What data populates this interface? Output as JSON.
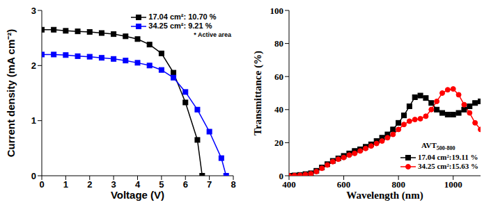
{
  "chart_data": [
    {
      "type": "line",
      "x_label": "Voltage (V)",
      "y_label": "Current density (mA cm⁻²)",
      "annotation": "* Active area",
      "xlim": [
        0,
        8
      ],
      "xticks": [
        0,
        1,
        2,
        3,
        4,
        5,
        6,
        7,
        8
      ],
      "ylim": [
        0,
        3
      ],
      "yticks": [
        0,
        1,
        2,
        3
      ],
      "grid": false,
      "legend": "upper right",
      "series": [
        {
          "name": "17.04 cm²: 10.70 %",
          "color": "#000000",
          "marker": "square",
          "line_style": "solid",
          "x": [
            0,
            0.5,
            1,
            1.5,
            2,
            2.5,
            3,
            3.5,
            4,
            4.5,
            5,
            5.5,
            6,
            6.5,
            6.7
          ],
          "values": [
            2.65,
            2.65,
            2.63,
            2.62,
            2.61,
            2.59,
            2.57,
            2.53,
            2.48,
            2.38,
            2.22,
            1.87,
            1.33,
            0.65,
            0
          ]
        },
        {
          "name": "34.25 cm²: 9.21 %",
          "color": "#0000ff",
          "marker": "square",
          "line_style": "solid",
          "x": [
            0,
            0.5,
            1,
            1.5,
            2,
            2.5,
            3,
            3.5,
            4,
            4.5,
            5,
            5.5,
            6,
            6.5,
            7,
            7.5,
            7.7
          ],
          "values": [
            2.2,
            2.2,
            2.19,
            2.17,
            2.16,
            2.14,
            2.12,
            2.09,
            2.05,
            2.0,
            1.92,
            1.78,
            1.52,
            1.2,
            0.8,
            0.32,
            0
          ]
        }
      ]
    },
    {
      "type": "line",
      "x_label": "Wavelength (nm)",
      "y_label": "Transmittance (%)",
      "legend_title": "AVT",
      "legend_title_sub": "500-800",
      "xlim": [
        400,
        1100
      ],
      "xticks": [
        400,
        600,
        800,
        1000
      ],
      "ylim": [
        0,
        100
      ],
      "yticks": [
        0,
        20,
        40,
        60,
        80,
        100
      ],
      "grid": false,
      "legend": "lower right",
      "series": [
        {
          "name": "17.04 cm²:19.11 %",
          "color": "#000000",
          "marker": "square",
          "line_style": "solid",
          "x": [
            400,
            420,
            440,
            460,
            480,
            500,
            520,
            540,
            560,
            580,
            600,
            620,
            640,
            660,
            680,
            700,
            720,
            740,
            760,
            780,
            800,
            820,
            840,
            860,
            880,
            900,
            920,
            940,
            960,
            980,
            1000,
            1020,
            1040,
            1060,
            1080,
            1100
          ],
          "values": [
            0,
            0.2,
            0.5,
            1,
            1.5,
            3,
            5,
            7,
            9,
            10.5,
            12,
            13.5,
            15,
            16,
            17.5,
            19,
            21,
            23,
            25,
            28,
            32,
            36.5,
            42,
            47.5,
            48.5,
            47,
            44,
            40,
            38,
            37,
            37,
            38,
            40,
            42,
            44,
            45
          ]
        },
        {
          "name": "34.25 cm²:15.63 %",
          "color": "#ff0000",
          "marker": "circle",
          "line_style": "solid",
          "x": [
            400,
            420,
            440,
            460,
            480,
            500,
            520,
            540,
            560,
            580,
            600,
            620,
            640,
            660,
            680,
            700,
            720,
            740,
            760,
            780,
            800,
            820,
            840,
            860,
            880,
            900,
            920,
            940,
            960,
            980,
            1000,
            1020,
            1040,
            1060,
            1080,
            1100
          ],
          "values": [
            0,
            0.1,
            0.3,
            0.7,
            1.2,
            2.5,
            4.5,
            6.5,
            8.5,
            10,
            11,
            12.5,
            13.5,
            15,
            16.5,
            18,
            19.5,
            21,
            23,
            25,
            28,
            31,
            33,
            34,
            34.5,
            36,
            40,
            45,
            50,
            52,
            52.5,
            49,
            43,
            38,
            32,
            28
          ]
        }
      ]
    }
  ]
}
